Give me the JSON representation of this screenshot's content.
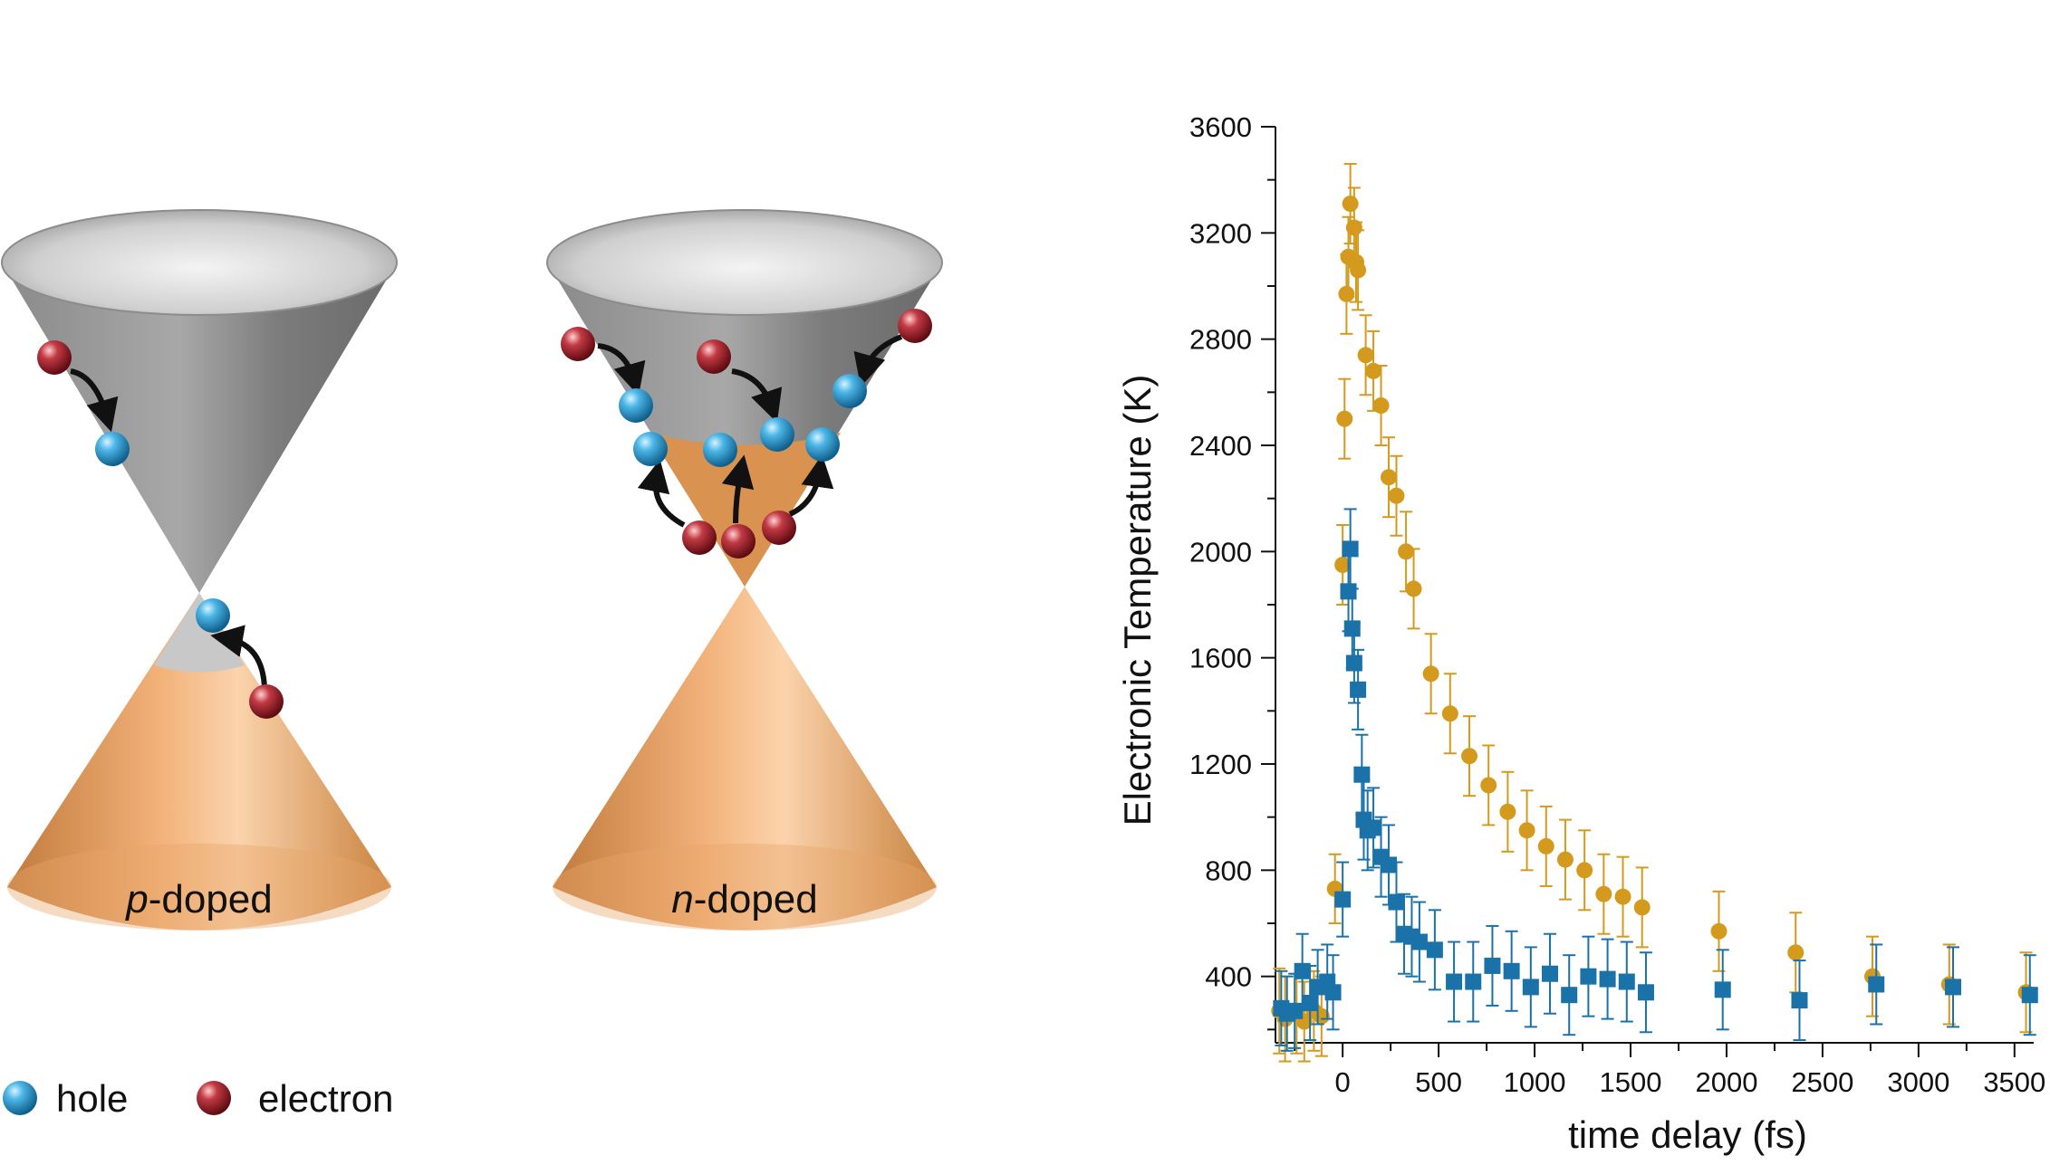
{
  "diagram": {
    "cones": [
      {
        "label_prefix": "p",
        "label_suffix": "-doped"
      },
      {
        "label_prefix": "n",
        "label_suffix": "-doped"
      }
    ],
    "legend": {
      "hole": "hole",
      "electron": "electron"
    },
    "colors": {
      "hole": "#2a9fd6",
      "electron": "#b3222e",
      "valence": "#e8a162",
      "conduction": "#9a9a9a"
    }
  },
  "chart_data": {
    "type": "scatter",
    "title": "",
    "xlabel": "time delay (fs)",
    "ylabel": "Electronic Temperature (K)",
    "xlim": [
      -350,
      3600
    ],
    "ylim": [
      150,
      3600
    ],
    "xticks": [
      0,
      500,
      1000,
      1500,
      2000,
      2500,
      3000,
      3500
    ],
    "yticks": [
      400,
      800,
      1200,
      1600,
      2000,
      2400,
      2800,
      3200,
      3600
    ],
    "series": [
      {
        "marker": "circle",
        "color": "#d49a1e",
        "points": [
          {
            "x": -330,
            "y": 270,
            "err": 160
          },
          {
            "x": -300,
            "y": 240,
            "err": 160
          },
          {
            "x": -240,
            "y": 260,
            "err": 150
          },
          {
            "x": -200,
            "y": 230,
            "err": 150
          },
          {
            "x": -150,
            "y": 270,
            "err": 150
          },
          {
            "x": -110,
            "y": 250,
            "err": 150
          },
          {
            "x": -40,
            "y": 730,
            "err": 130
          },
          {
            "x": 0,
            "y": 1950,
            "err": 150
          },
          {
            "x": 10,
            "y": 2500,
            "err": 150
          },
          {
            "x": 20,
            "y": 2970,
            "err": 150
          },
          {
            "x": 30,
            "y": 3110,
            "err": 150
          },
          {
            "x": 40,
            "y": 3310,
            "err": 150
          },
          {
            "x": 60,
            "y": 3220,
            "err": 150
          },
          {
            "x": 70,
            "y": 3090,
            "err": 150
          },
          {
            "x": 80,
            "y": 3060,
            "err": 150
          },
          {
            "x": 120,
            "y": 2740,
            "err": 150
          },
          {
            "x": 160,
            "y": 2680,
            "err": 150
          },
          {
            "x": 200,
            "y": 2550,
            "err": 150
          },
          {
            "x": 240,
            "y": 2280,
            "err": 150
          },
          {
            "x": 280,
            "y": 2210,
            "err": 150
          },
          {
            "x": 330,
            "y": 2000,
            "err": 150
          },
          {
            "x": 370,
            "y": 1860,
            "err": 150
          },
          {
            "x": 460,
            "y": 1540,
            "err": 150
          },
          {
            "x": 560,
            "y": 1390,
            "err": 150
          },
          {
            "x": 660,
            "y": 1230,
            "err": 150
          },
          {
            "x": 760,
            "y": 1120,
            "err": 150
          },
          {
            "x": 860,
            "y": 1020,
            "err": 150
          },
          {
            "x": 960,
            "y": 950,
            "err": 150
          },
          {
            "x": 1060,
            "y": 890,
            "err": 150
          },
          {
            "x": 1160,
            "y": 840,
            "err": 150
          },
          {
            "x": 1260,
            "y": 800,
            "err": 150
          },
          {
            "x": 1360,
            "y": 710,
            "err": 150
          },
          {
            "x": 1460,
            "y": 700,
            "err": 150
          },
          {
            "x": 1560,
            "y": 660,
            "err": 150
          },
          {
            "x": 1960,
            "y": 570,
            "err": 150
          },
          {
            "x": 2360,
            "y": 490,
            "err": 150
          },
          {
            "x": 2760,
            "y": 400,
            "err": 150
          },
          {
            "x": 3160,
            "y": 370,
            "err": 150
          },
          {
            "x": 3560,
            "y": 340,
            "err": 150
          }
        ]
      },
      {
        "marker": "square",
        "color": "#1a72a8",
        "points": [
          {
            "x": -320,
            "y": 280,
            "err": 140
          },
          {
            "x": -290,
            "y": 260,
            "err": 140
          },
          {
            "x": -250,
            "y": 270,
            "err": 140
          },
          {
            "x": -210,
            "y": 420,
            "err": 140
          },
          {
            "x": -170,
            "y": 300,
            "err": 140
          },
          {
            "x": -130,
            "y": 360,
            "err": 140
          },
          {
            "x": -80,
            "y": 380,
            "err": 140
          },
          {
            "x": -50,
            "y": 340,
            "err": 140
          },
          {
            "x": 0,
            "y": 690,
            "err": 140
          },
          {
            "x": 30,
            "y": 1850,
            "err": 150
          },
          {
            "x": 40,
            "y": 2010,
            "err": 150
          },
          {
            "x": 50,
            "y": 1710,
            "err": 150
          },
          {
            "x": 60,
            "y": 1580,
            "err": 150
          },
          {
            "x": 80,
            "y": 1480,
            "err": 150
          },
          {
            "x": 100,
            "y": 1160,
            "err": 150
          },
          {
            "x": 110,
            "y": 990,
            "err": 150
          },
          {
            "x": 130,
            "y": 950,
            "err": 150
          },
          {
            "x": 160,
            "y": 960,
            "err": 150
          },
          {
            "x": 200,
            "y": 850,
            "err": 150
          },
          {
            "x": 240,
            "y": 820,
            "err": 150
          },
          {
            "x": 280,
            "y": 680,
            "err": 150
          },
          {
            "x": 320,
            "y": 560,
            "err": 150
          },
          {
            "x": 360,
            "y": 550,
            "err": 150
          },
          {
            "x": 400,
            "y": 530,
            "err": 150
          },
          {
            "x": 480,
            "y": 500,
            "err": 150
          },
          {
            "x": 580,
            "y": 380,
            "err": 150
          },
          {
            "x": 680,
            "y": 380,
            "err": 150
          },
          {
            "x": 780,
            "y": 440,
            "err": 150
          },
          {
            "x": 880,
            "y": 420,
            "err": 150
          },
          {
            "x": 980,
            "y": 360,
            "err": 150
          },
          {
            "x": 1080,
            "y": 410,
            "err": 150
          },
          {
            "x": 1180,
            "y": 330,
            "err": 150
          },
          {
            "x": 1280,
            "y": 400,
            "err": 150
          },
          {
            "x": 1380,
            "y": 390,
            "err": 150
          },
          {
            "x": 1480,
            "y": 380,
            "err": 150
          },
          {
            "x": 1580,
            "y": 340,
            "err": 150
          },
          {
            "x": 1980,
            "y": 350,
            "err": 150
          },
          {
            "x": 2380,
            "y": 310,
            "err": 150
          },
          {
            "x": 2780,
            "y": 370,
            "err": 150
          },
          {
            "x": 3180,
            "y": 360,
            "err": 150
          },
          {
            "x": 3580,
            "y": 330,
            "err": 150
          }
        ]
      }
    ]
  }
}
